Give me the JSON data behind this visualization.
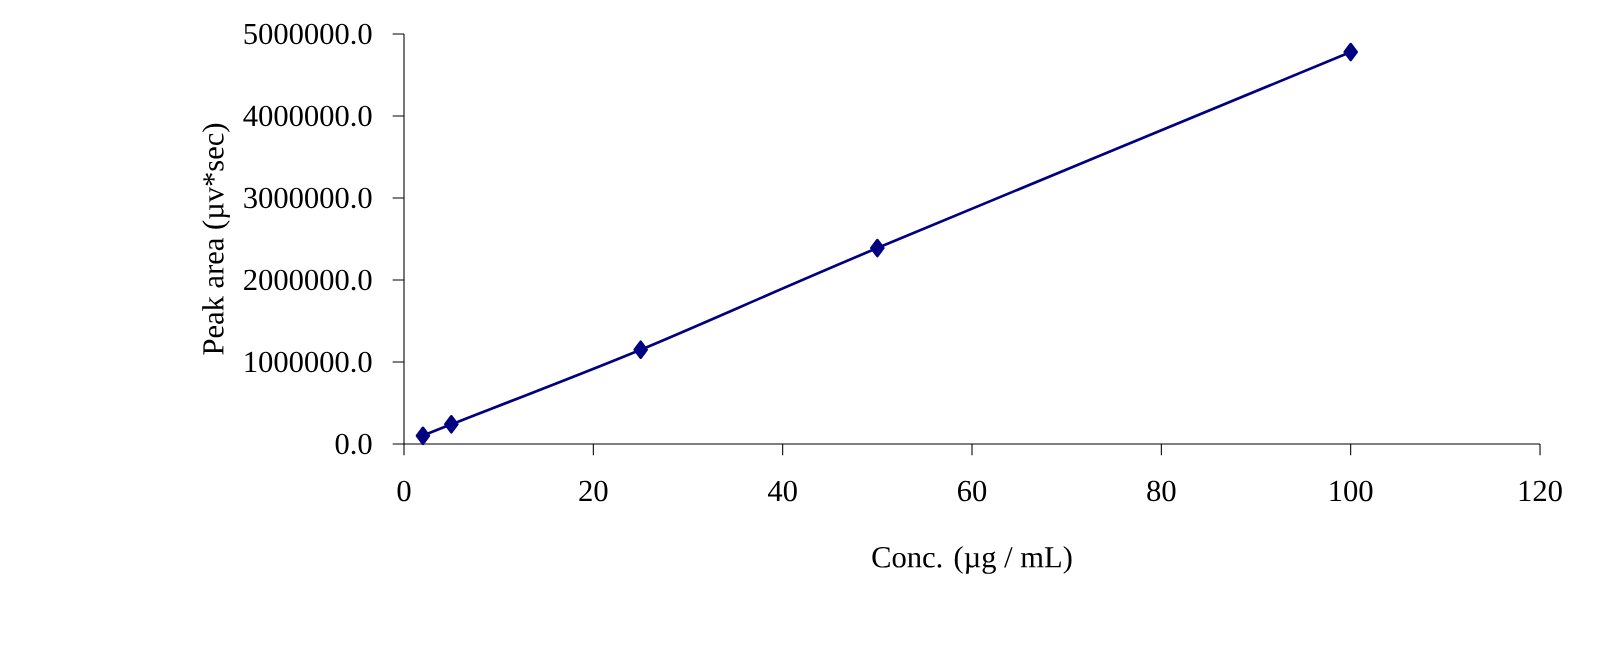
{
  "chart_data": {
    "type": "line",
    "xlabel": "Conc. (µg / mL)",
    "ylabel": "Peak area (µv*sec)",
    "x": [
      2,
      5,
      25,
      50,
      100
    ],
    "series": [
      {
        "color": "#000080",
        "values": [
          100000,
          240000,
          1150000,
          2390000,
          4780000
        ]
      }
    ],
    "xlim": [
      0,
      120
    ],
    "xticks": [
      0,
      20,
      40,
      60,
      80,
      100,
      120
    ],
    "ylim": [
      0,
      5000000
    ],
    "yticks": [
      {
        "value": 0,
        "label": "0.0"
      },
      {
        "value": 1000000,
        "label": "1000000.0"
      },
      {
        "value": 2000000,
        "label": "2000000.0"
      },
      {
        "value": 3000000,
        "label": "3000000.0"
      },
      {
        "value": 4000000,
        "label": "4000000.0"
      },
      {
        "value": 5000000,
        "label": "5000000.0"
      }
    ],
    "marker": "diamond",
    "line_style": "solid"
  }
}
